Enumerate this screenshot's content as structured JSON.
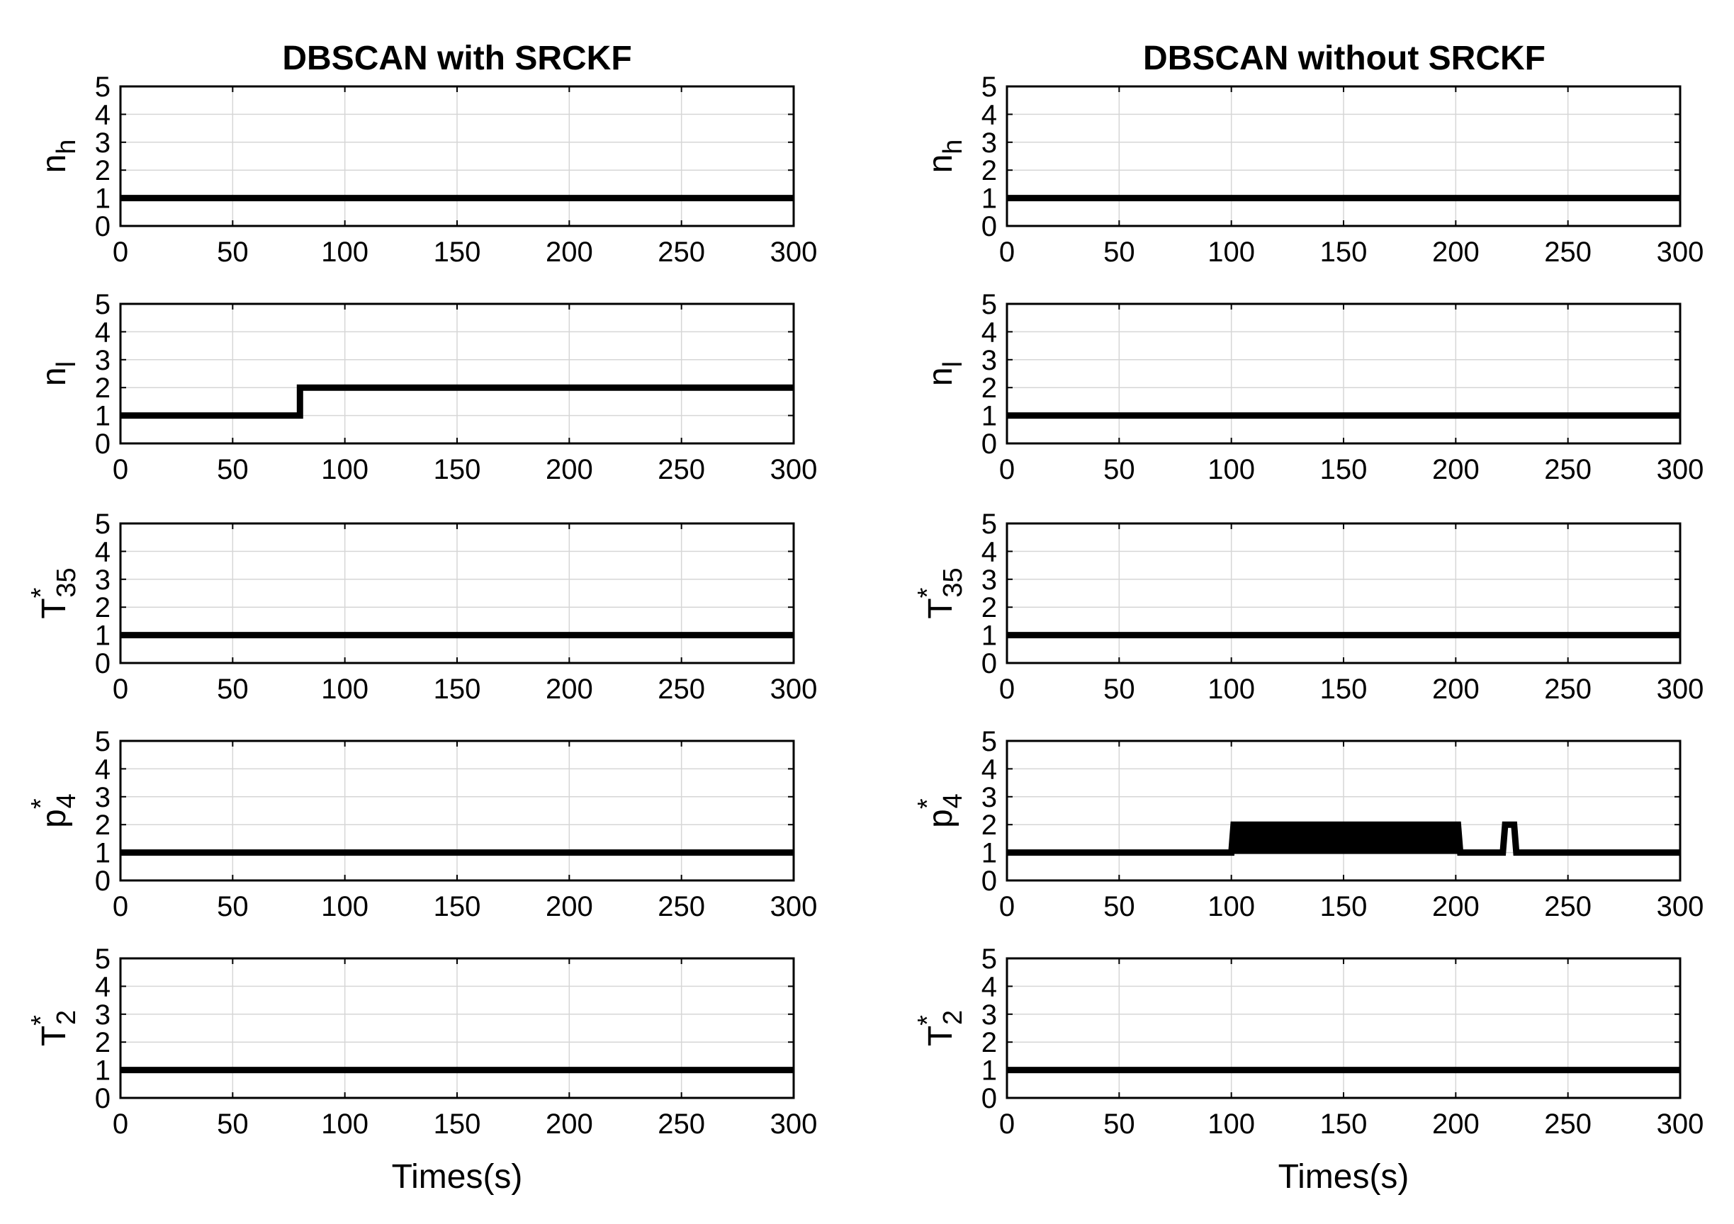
{
  "chart_data": [
    {
      "type": "line",
      "title": "DBSCAN with SRCKF",
      "panels": [
        {
          "ylabel_main": "n",
          "ylabel_sub": "h",
          "ylabel_sup": "",
          "xlim": [
            0,
            300
          ],
          "ylim": [
            0,
            5
          ],
          "xticks": [
            0,
            50,
            100,
            150,
            200,
            250,
            300
          ],
          "yticks": [
            0,
            1,
            2,
            3,
            4,
            5
          ],
          "xlabel": "",
          "segments": [
            [
              0,
              1
            ],
            [
              300,
              1
            ]
          ]
        },
        {
          "ylabel_main": "n",
          "ylabel_sub": "l",
          "ylabel_sup": "",
          "xlim": [
            0,
            300
          ],
          "ylim": [
            0,
            5
          ],
          "xticks": [
            0,
            50,
            100,
            150,
            200,
            250,
            300
          ],
          "yticks": [
            0,
            1,
            2,
            3,
            4,
            5
          ],
          "xlabel": "",
          "segments": [
            [
              0,
              1
            ],
            [
              80,
              1
            ],
            [
              80,
              2
            ],
            [
              300,
              2
            ]
          ]
        },
        {
          "ylabel_main": "T",
          "ylabel_sub": "35",
          "ylabel_sup": "*",
          "xlim": [
            0,
            300
          ],
          "ylim": [
            0,
            5
          ],
          "xticks": [
            0,
            50,
            100,
            150,
            200,
            250,
            300
          ],
          "yticks": [
            0,
            1,
            2,
            3,
            4,
            5
          ],
          "xlabel": "",
          "segments": [
            [
              0,
              1
            ],
            [
              300,
              1
            ]
          ]
        },
        {
          "ylabel_main": "p",
          "ylabel_sub": "4",
          "ylabel_sup": "*",
          "xlim": [
            0,
            300
          ],
          "ylim": [
            0,
            5
          ],
          "xticks": [
            0,
            50,
            100,
            150,
            200,
            250,
            300
          ],
          "yticks": [
            0,
            1,
            2,
            3,
            4,
            5
          ],
          "xlabel": "",
          "segments": [
            [
              0,
              1
            ],
            [
              300,
              1
            ]
          ]
        },
        {
          "ylabel_main": "T",
          "ylabel_sub": "2",
          "ylabel_sup": "*",
          "xlim": [
            0,
            300
          ],
          "ylim": [
            0,
            5
          ],
          "xticks": [
            0,
            50,
            100,
            150,
            200,
            250,
            300
          ],
          "yticks": [
            0,
            1,
            2,
            3,
            4,
            5
          ],
          "xlabel": "Times(s)",
          "segments": [
            [
              0,
              1
            ],
            [
              300,
              1
            ]
          ]
        }
      ]
    },
    {
      "type": "line",
      "title": "DBSCAN without SRCKF",
      "panels": [
        {
          "ylabel_main": "n",
          "ylabel_sub": "h",
          "ylabel_sup": "",
          "xlim": [
            0,
            300
          ],
          "ylim": [
            0,
            5
          ],
          "xticks": [
            0,
            50,
            100,
            150,
            200,
            250,
            300
          ],
          "yticks": [
            0,
            1,
            2,
            3,
            4,
            5
          ],
          "xlabel": "",
          "segments": [
            [
              0,
              1
            ],
            [
              300,
              1
            ]
          ]
        },
        {
          "ylabel_main": "n",
          "ylabel_sub": "l",
          "ylabel_sup": "",
          "xlim": [
            0,
            300
          ],
          "ylim": [
            0,
            5
          ],
          "xticks": [
            0,
            50,
            100,
            150,
            200,
            250,
            300
          ],
          "yticks": [
            0,
            1,
            2,
            3,
            4,
            5
          ],
          "xlabel": "",
          "segments": [
            [
              0,
              1
            ],
            [
              300,
              1
            ]
          ]
        },
        {
          "ylabel_main": "T",
          "ylabel_sub": "35",
          "ylabel_sup": "*",
          "xlim": [
            0,
            300
          ],
          "ylim": [
            0,
            5
          ],
          "xticks": [
            0,
            50,
            100,
            150,
            200,
            250,
            300
          ],
          "yticks": [
            0,
            1,
            2,
            3,
            4,
            5
          ],
          "xlabel": "",
          "segments": [
            [
              0,
              1
            ],
            [
              300,
              1
            ]
          ]
        },
        {
          "ylabel_main": "p",
          "ylabel_sub": "4",
          "ylabel_sup": "*",
          "xlim": [
            0,
            300
          ],
          "ylim": [
            0,
            5
          ],
          "xticks": [
            0,
            50,
            100,
            150,
            200,
            250,
            300
          ],
          "yticks": [
            0,
            1,
            2,
            3,
            4,
            5
          ],
          "xlabel": "",
          "segments": [
            [
              0,
              1
            ],
            [
              100,
              1
            ],
            [
              101,
              2
            ],
            [
              201,
              2
            ],
            [
              202,
              1
            ],
            [
              221,
              1
            ],
            [
              222,
              2
            ],
            [
              226,
              2
            ],
            [
              227,
              1
            ],
            [
              300,
              1
            ]
          ],
          "oscillation": {
            "x_range": [
              101,
              201
            ],
            "y_low": 1,
            "y_high": 2
          }
        },
        {
          "ylabel_main": "T",
          "ylabel_sub": "2",
          "ylabel_sup": "*",
          "xlim": [
            0,
            300
          ],
          "ylim": [
            0,
            5
          ],
          "xticks": [
            0,
            50,
            100,
            150,
            200,
            250,
            300
          ],
          "yticks": [
            0,
            1,
            2,
            3,
            4,
            5
          ],
          "xlabel": "Times(s)",
          "segments": [
            [
              0,
              1
            ],
            [
              300,
              1
            ]
          ]
        }
      ]
    }
  ]
}
